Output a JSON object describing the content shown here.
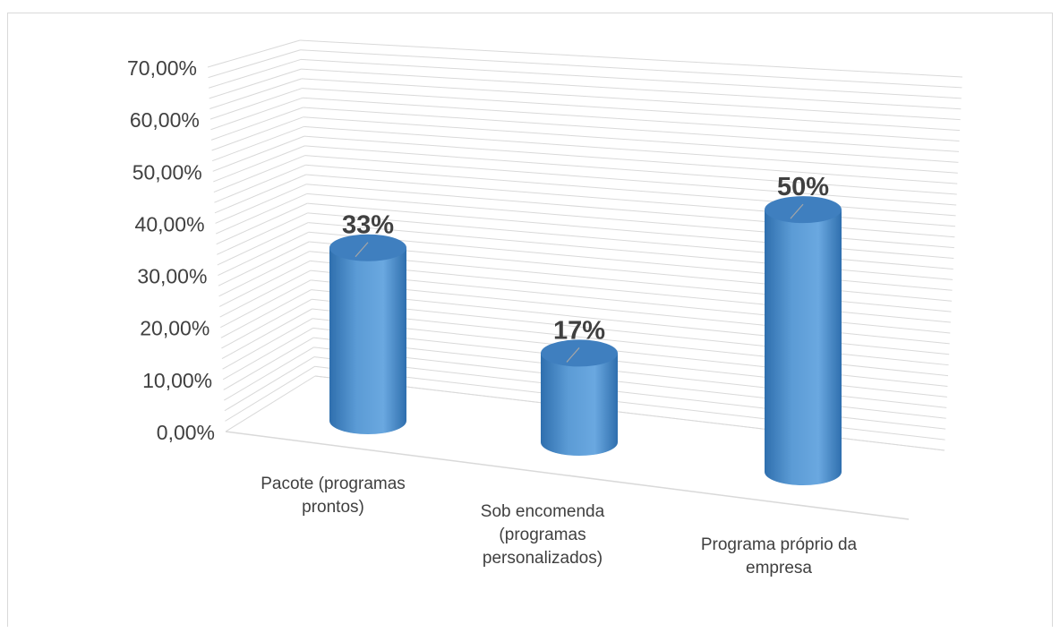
{
  "chart_data": {
    "type": "bar",
    "style": "3d-cylinder",
    "categories": [
      [
        "Pacote (programas",
        "prontos)"
      ],
      [
        "Sob encomenda",
        "(programas",
        "personalizados)"
      ],
      [
        "Programa próprio da",
        "empresa"
      ]
    ],
    "values": [
      0.33,
      0.17,
      0.5
    ],
    "data_labels": [
      "33%",
      "17%",
      "50%"
    ],
    "ylim": [
      0,
      0.7
    ],
    "y_ticks": [
      "0,00%",
      "10,00%",
      "20,00%",
      "30,00%",
      "40,00%",
      "50,00%",
      "60,00%",
      "70,00%"
    ],
    "grid": true,
    "legend": "none",
    "colors": {
      "bar": "#5b9bd5",
      "bar_dark": "#2e75b6",
      "bar_top": "#3f7fbf",
      "grid": "#d9d9d9",
      "text": "#404040"
    }
  }
}
